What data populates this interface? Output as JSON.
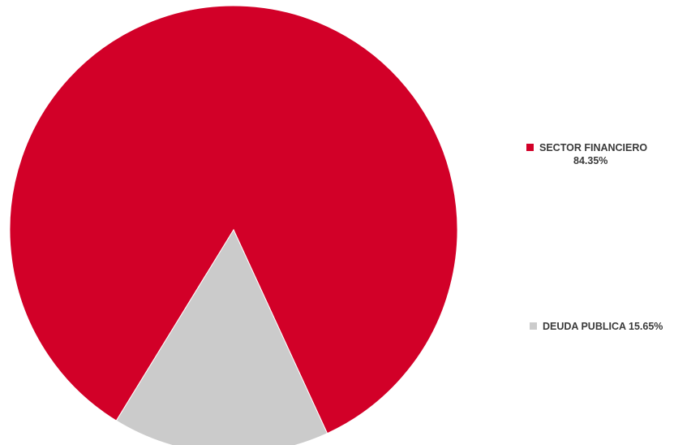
{
  "colors": {
    "financiero": "#d20028",
    "deuda": "#cbcbcb"
  },
  "chart_data": {
    "type": "pie",
    "title": "",
    "slices": [
      {
        "label": "SECTOR FINANCIERO",
        "value": 84.35,
        "display": "84.35%",
        "color": "#d20028"
      },
      {
        "label": "DEUDA PUBLICA",
        "value": 15.65,
        "display": "15.65%",
        "color": "#cbcbcb"
      }
    ],
    "legend_position": "right"
  },
  "legend": {
    "financiero_name": "SECTOR FINANCIERO",
    "financiero_pct": "84.35%",
    "deuda_text": "DEUDA PUBLICA 15.65%"
  }
}
